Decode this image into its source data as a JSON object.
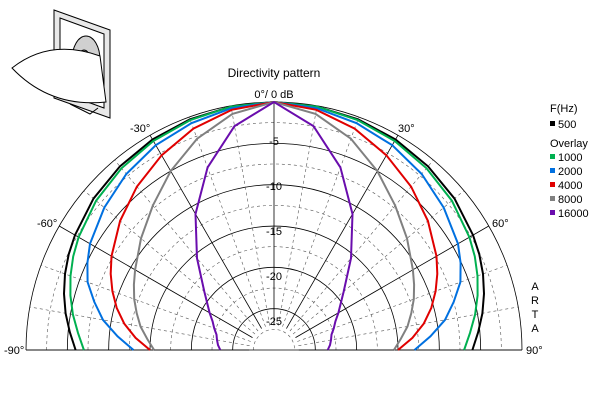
{
  "chart_data": {
    "type": "polar",
    "title": "Directivity pattern",
    "top_label": "0°/ 0 dB",
    "watermark": "ARTA",
    "radial_range_db": [
      -30,
      0
    ],
    "radial_ticks": [
      "-5",
      "-10",
      "-15",
      "-20",
      "-25"
    ],
    "angle_range_deg": [
      -90,
      90
    ],
    "angle_ticks": [
      "-90°",
      "-60°",
      "-30°",
      "30°",
      "60°",
      "90°"
    ],
    "legend": {
      "header": "F(Hz)",
      "reference": {
        "label": "500",
        "color": "#000000"
      },
      "overlay_header": "Overlay",
      "items": [
        {
          "label": "1000",
          "color": "#00b050"
        },
        {
          "label": "2000",
          "color": "#0070e0"
        },
        {
          "label": "4000",
          "color": "#e00000"
        },
        {
          "label": "8000",
          "color": "#808080"
        },
        {
          "label": "16000",
          "color": "#6a0dad"
        }
      ]
    },
    "angles_deg": [
      0,
      10,
      20,
      30,
      40,
      50,
      60,
      65,
      70,
      75,
      80,
      85,
      90
    ],
    "series": [
      {
        "name": "500",
        "color": "#000000",
        "values": [
          0,
          -0.1,
          -0.3,
          -0.6,
          -1.0,
          -1.5,
          -2.2,
          -2.6,
          -3.1,
          -3.7,
          -4.4,
          -5.2,
          -6.0
        ]
      },
      {
        "name": "1000",
        "color": "#00b050",
        "values": [
          0,
          -0.1,
          -0.4,
          -0.8,
          -1.3,
          -1.9,
          -2.7,
          -3.2,
          -3.8,
          -4.5,
          -5.3,
          -6.2,
          -7.0
        ]
      },
      {
        "name": "2000",
        "color": "#0070e0",
        "values": [
          0,
          -0.3,
          -0.8,
          -1.4,
          -2.2,
          -3.2,
          -4.3,
          -5.1,
          -6.0,
          -7.5,
          -9.0,
          -11.0,
          -13.0
        ]
      },
      {
        "name": "4000",
        "color": "#e00000",
        "values": [
          0,
          -0.5,
          -1.5,
          -2.8,
          -4.2,
          -5.7,
          -7.3,
          -8.2,
          -9.2,
          -10.3,
          -11.6,
          -13.2,
          -15.0
        ]
      },
      {
        "name": "8000",
        "color": "#808080",
        "values": [
          0,
          -1.0,
          -2.8,
          -5.0,
          -7.2,
          -9.0,
          -10.6,
          -11.3,
          -12.0,
          -12.8,
          -13.6,
          -14.6,
          -15.5
        ]
      },
      {
        "name": "16000",
        "color": "#6a0dad",
        "values": [
          0,
          -2.5,
          -6.5,
          -11.0,
          -15.5,
          -19.0,
          -21.0,
          -21.8,
          -22.3,
          -22.8,
          -23.0,
          -23.2,
          -23.5
        ]
      }
    ]
  }
}
